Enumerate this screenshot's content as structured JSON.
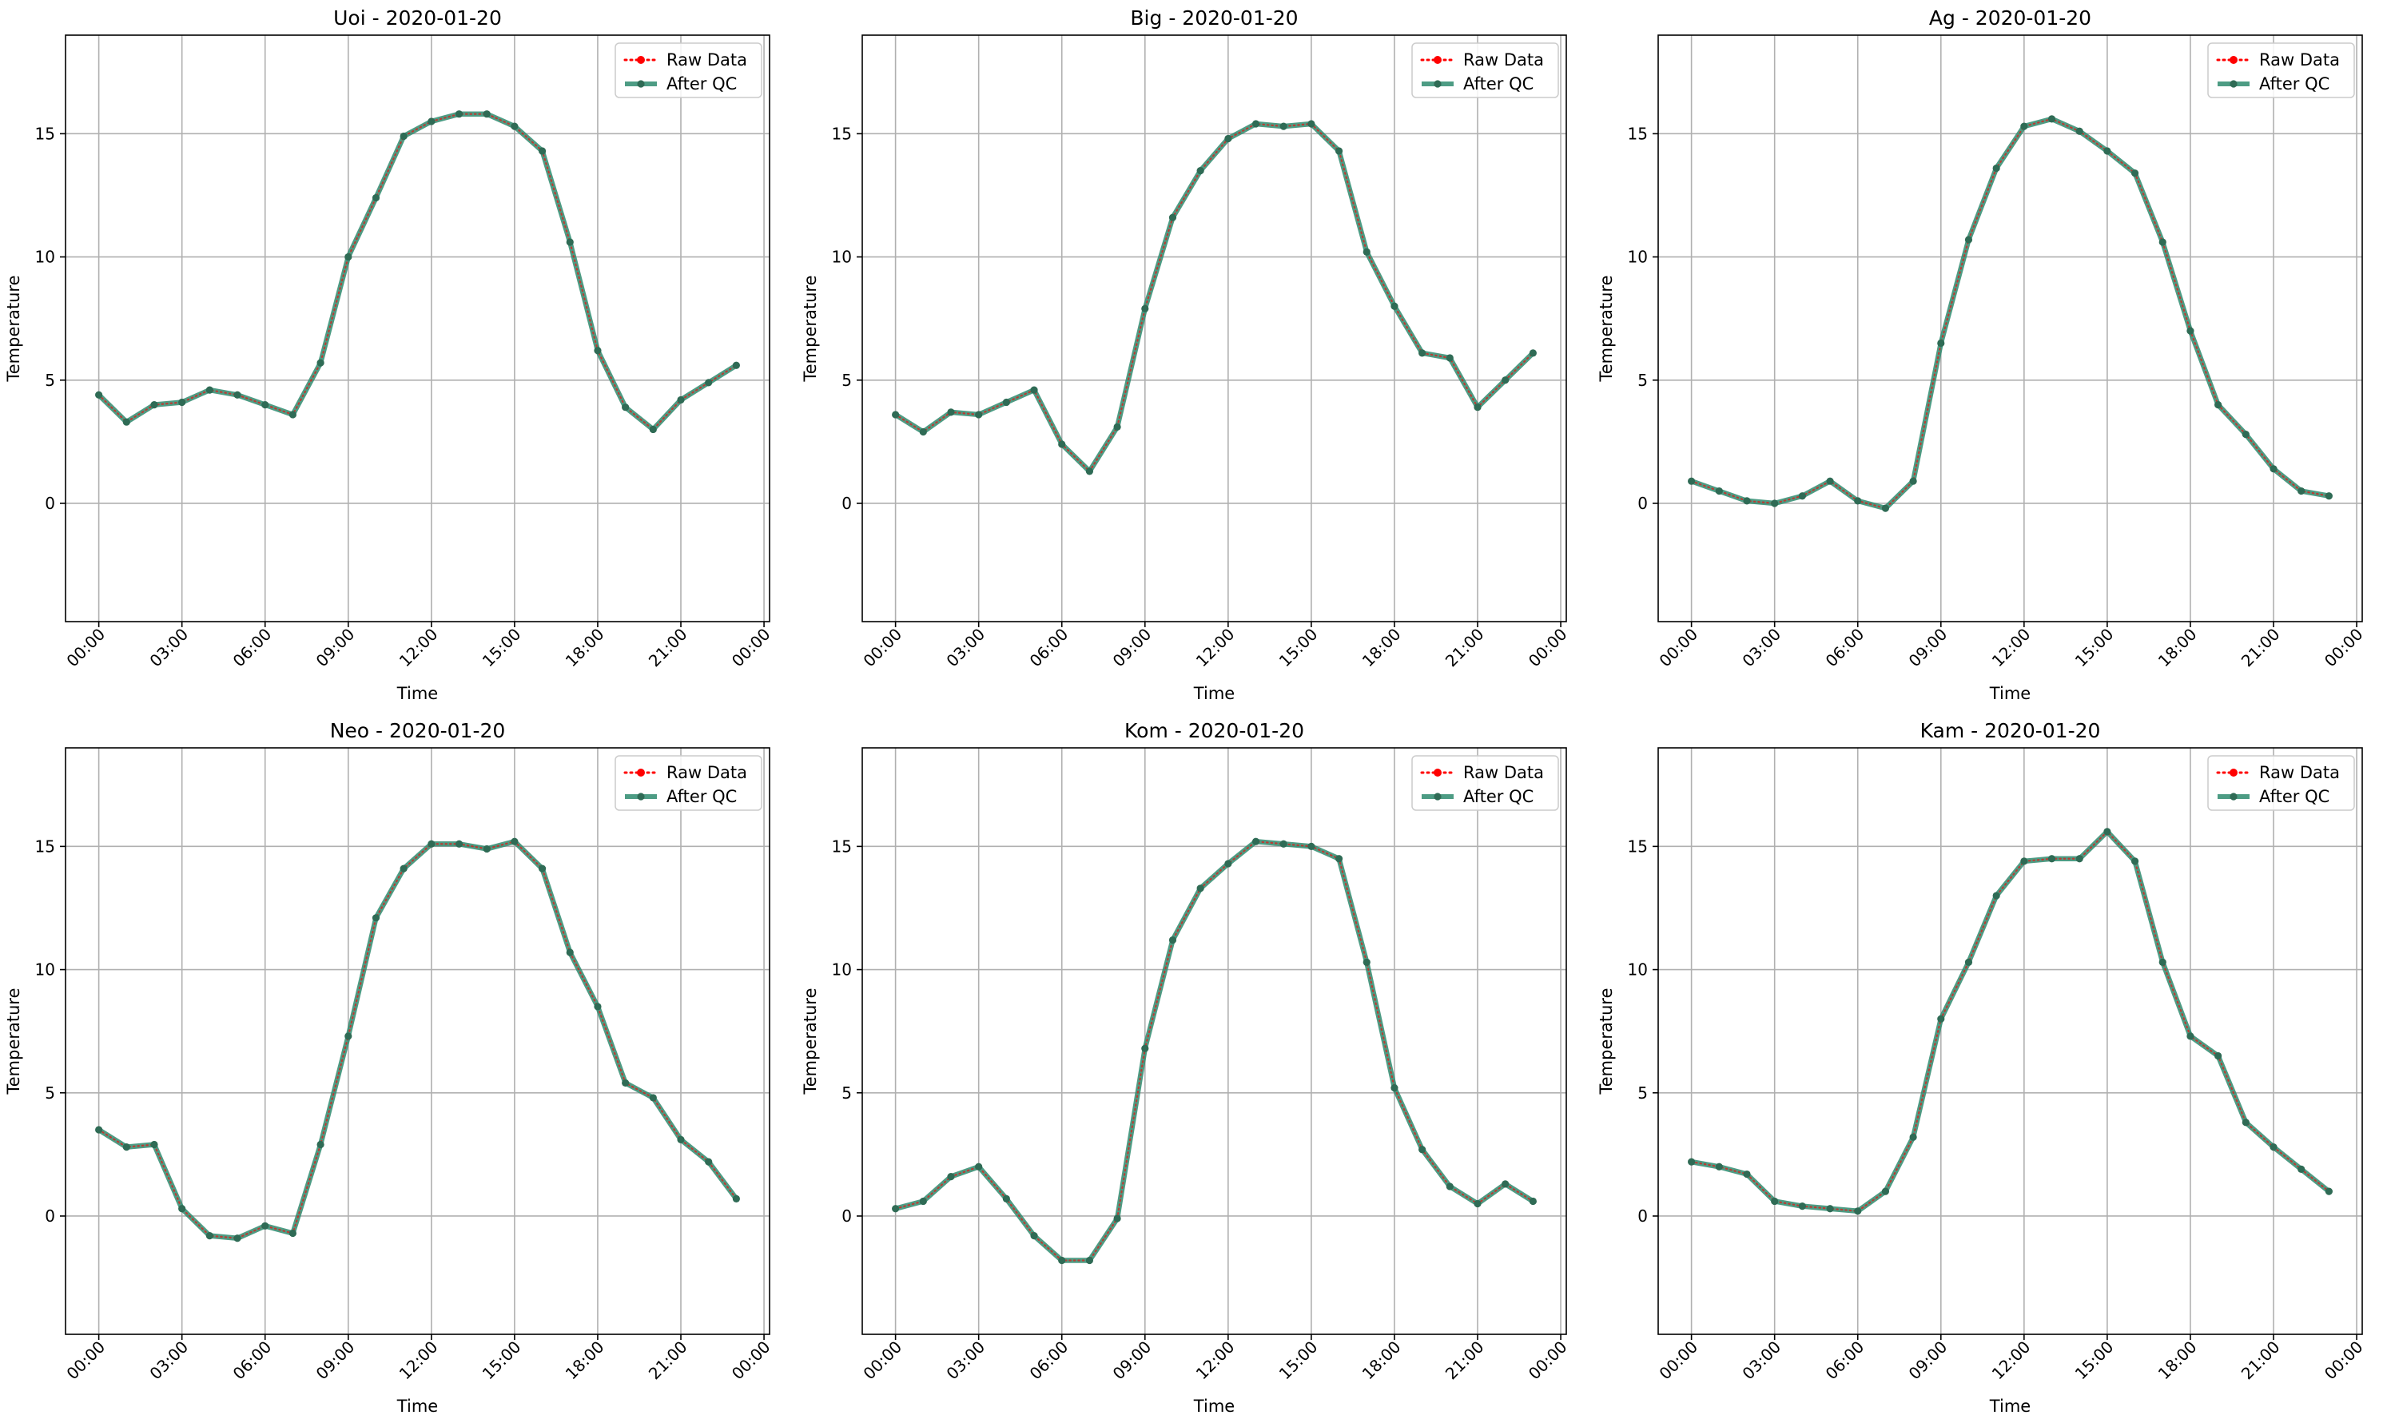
{
  "figure": {
    "xlabel": "Time",
    "ylabel": "Temperature",
    "x_tick_labels": [
      "00:00",
      "03:00",
      "06:00",
      "09:00",
      "12:00",
      "15:00",
      "18:00",
      "21:00",
      "00:00"
    ],
    "y_tick_labels": [
      "0",
      "5",
      "10",
      "15"
    ],
    "legend_raw": "Raw Data",
    "legend_qc": "After QC",
    "colors": {
      "raw": "#ff0000",
      "qc": "#2e8b6e",
      "marker": "#2f6b55",
      "grid": "#b0b0b0"
    }
  },
  "chart_data": [
    {
      "type": "line",
      "title": "Uoi - 2020-01-20",
      "xlabel": "Time",
      "ylabel": "Temperature",
      "x_unit": "hour",
      "x": [
        0,
        1,
        2,
        3,
        4,
        5,
        6,
        7,
        8,
        9,
        10,
        11,
        12,
        13,
        14,
        15,
        16,
        17,
        18,
        19,
        20,
        21,
        22,
        23
      ],
      "xlim": [
        0,
        24
      ],
      "ylim": [
        -4.8,
        19
      ],
      "grid": true,
      "legend_position": "top-right",
      "series": [
        {
          "name": "Raw Data",
          "style": "dotted",
          "values": [
            4.4,
            3.3,
            4.0,
            4.1,
            4.6,
            4.4,
            4.0,
            3.6,
            5.7,
            10.0,
            12.4,
            14.9,
            15.5,
            15.8,
            15.8,
            15.3,
            14.3,
            10.6,
            6.2,
            3.9,
            3.0,
            4.2,
            4.9,
            5.6
          ]
        },
        {
          "name": "After QC",
          "style": "solid",
          "values": [
            4.4,
            3.3,
            4.0,
            4.1,
            4.6,
            4.4,
            4.0,
            3.6,
            5.7,
            10.0,
            12.4,
            14.9,
            15.5,
            15.8,
            15.8,
            15.3,
            14.3,
            10.6,
            6.2,
            3.9,
            3.0,
            4.2,
            4.9,
            5.6
          ]
        }
      ]
    },
    {
      "type": "line",
      "title": "Big - 2020-01-20",
      "xlabel": "Time",
      "ylabel": "Temperature",
      "x_unit": "hour",
      "x": [
        0,
        1,
        2,
        3,
        4,
        5,
        6,
        7,
        8,
        9,
        10,
        11,
        12,
        13,
        14,
        15,
        16,
        17,
        18,
        19,
        20,
        21,
        22,
        23
      ],
      "xlim": [
        0,
        24
      ],
      "ylim": [
        -4.8,
        19
      ],
      "grid": true,
      "legend_position": "top-right",
      "series": [
        {
          "name": "Raw Data",
          "style": "dotted",
          "values": [
            3.6,
            2.9,
            3.7,
            3.6,
            4.1,
            4.6,
            2.4,
            1.3,
            3.1,
            7.9,
            11.6,
            13.5,
            14.8,
            15.4,
            15.3,
            15.4,
            14.3,
            10.2,
            8.0,
            6.1,
            5.9,
            3.9,
            5.0,
            6.1
          ]
        },
        {
          "name": "After QC",
          "style": "solid",
          "values": [
            3.6,
            2.9,
            3.7,
            3.6,
            4.1,
            4.6,
            2.4,
            1.3,
            3.1,
            7.9,
            11.6,
            13.5,
            14.8,
            15.4,
            15.3,
            15.4,
            14.3,
            10.2,
            8.0,
            6.1,
            5.9,
            3.9,
            5.0,
            6.1
          ]
        }
      ]
    },
    {
      "type": "line",
      "title": "Ag - 2020-01-20",
      "xlabel": "Time",
      "ylabel": "Temperature",
      "x_unit": "hour",
      "x": [
        0,
        1,
        2,
        3,
        4,
        5,
        6,
        7,
        8,
        9,
        10,
        11,
        12,
        13,
        14,
        15,
        16,
        17,
        18,
        19,
        20,
        21,
        22,
        23
      ],
      "xlim": [
        0,
        24
      ],
      "ylim": [
        -4.8,
        19
      ],
      "grid": true,
      "legend_position": "top-right",
      "series": [
        {
          "name": "Raw Data",
          "style": "dotted",
          "values": [
            0.9,
            0.5,
            0.1,
            0.0,
            0.3,
            0.9,
            0.1,
            -0.2,
            0.9,
            6.5,
            10.7,
            13.6,
            15.3,
            15.6,
            15.1,
            14.3,
            13.4,
            10.6,
            7.0,
            4.0,
            2.8,
            1.4,
            0.5,
            0.3
          ]
        },
        {
          "name": "After QC",
          "style": "solid",
          "values": [
            0.9,
            0.5,
            0.1,
            0.0,
            0.3,
            0.9,
            0.1,
            -0.2,
            0.9,
            6.5,
            10.7,
            13.6,
            15.3,
            15.6,
            15.1,
            14.3,
            13.4,
            10.6,
            7.0,
            4.0,
            2.8,
            1.4,
            0.5,
            0.3
          ]
        }
      ]
    },
    {
      "type": "line",
      "title": "Neo - 2020-01-20",
      "xlabel": "Time",
      "ylabel": "Temperature",
      "x_unit": "hour",
      "x": [
        0,
        1,
        2,
        3,
        4,
        5,
        6,
        7,
        8,
        9,
        10,
        11,
        12,
        13,
        14,
        15,
        16,
        17,
        18,
        19,
        20,
        21,
        22,
        23
      ],
      "xlim": [
        0,
        24
      ],
      "ylim": [
        -4.8,
        19
      ],
      "grid": true,
      "legend_position": "top-right",
      "series": [
        {
          "name": "Raw Data",
          "style": "dotted",
          "values": [
            3.5,
            2.8,
            2.9,
            0.3,
            -0.8,
            -0.9,
            -0.4,
            -0.7,
            2.9,
            7.3,
            12.1,
            14.1,
            15.1,
            15.1,
            14.9,
            15.2,
            14.1,
            10.7,
            8.5,
            5.4,
            4.8,
            3.1,
            2.2,
            0.7
          ]
        },
        {
          "name": "After QC",
          "style": "solid",
          "values": [
            3.5,
            2.8,
            2.9,
            0.3,
            -0.8,
            -0.9,
            -0.4,
            -0.7,
            2.9,
            7.3,
            12.1,
            14.1,
            15.1,
            15.1,
            14.9,
            15.2,
            14.1,
            10.7,
            8.5,
            5.4,
            4.8,
            3.1,
            2.2,
            0.7
          ]
        }
      ]
    },
    {
      "type": "line",
      "title": "Kom - 2020-01-20",
      "xlabel": "Time",
      "ylabel": "Temperature",
      "x_unit": "hour",
      "x": [
        0,
        1,
        2,
        3,
        4,
        5,
        6,
        7,
        8,
        9,
        10,
        11,
        12,
        13,
        14,
        15,
        16,
        17,
        18,
        19,
        20,
        21,
        22,
        23
      ],
      "xlim": [
        0,
        24
      ],
      "ylim": [
        -4.8,
        19
      ],
      "grid": true,
      "legend_position": "top-right",
      "series": [
        {
          "name": "Raw Data",
          "style": "dotted",
          "values": [
            0.3,
            0.6,
            1.6,
            2.0,
            0.7,
            -0.8,
            -1.8,
            -1.8,
            -0.1,
            6.8,
            11.2,
            13.3,
            14.3,
            15.2,
            15.1,
            15.0,
            14.5,
            10.3,
            5.2,
            2.7,
            1.2,
            0.5,
            1.3,
            0.6
          ]
        },
        {
          "name": "After QC",
          "style": "solid",
          "values": [
            0.3,
            0.6,
            1.6,
            2.0,
            0.7,
            -0.8,
            -1.8,
            -1.8,
            -0.1,
            6.8,
            11.2,
            13.3,
            14.3,
            15.2,
            15.1,
            15.0,
            14.5,
            10.3,
            5.2,
            2.7,
            1.2,
            0.5,
            1.3,
            0.6
          ]
        }
      ]
    },
    {
      "type": "line",
      "title": "Kam - 2020-01-20",
      "xlabel": "Time",
      "ylabel": "Temperature",
      "x_unit": "hour",
      "x": [
        0,
        1,
        2,
        3,
        4,
        5,
        6,
        7,
        8,
        9,
        10,
        11,
        12,
        13,
        14,
        15,
        16,
        17,
        18,
        19,
        20,
        21,
        22,
        23
      ],
      "xlim": [
        0,
        24
      ],
      "ylim": [
        -4.8,
        19
      ],
      "grid": true,
      "legend_position": "top-right",
      "series": [
        {
          "name": "Raw Data",
          "style": "dotted",
          "values": [
            2.2,
            2.0,
            1.7,
            0.6,
            0.4,
            0.3,
            0.2,
            1.0,
            3.2,
            8.0,
            10.3,
            13.0,
            14.4,
            14.5,
            14.5,
            15.6,
            14.4,
            10.3,
            7.3,
            6.5,
            3.8,
            2.8,
            1.9,
            1.0
          ]
        },
        {
          "name": "After QC",
          "style": "solid",
          "values": [
            2.2,
            2.0,
            1.7,
            0.6,
            0.4,
            0.3,
            0.2,
            1.0,
            3.2,
            8.0,
            10.3,
            13.0,
            14.4,
            14.5,
            14.5,
            15.6,
            14.4,
            10.3,
            7.3,
            6.5,
            3.8,
            2.8,
            1.9,
            1.0
          ]
        }
      ]
    }
  ]
}
